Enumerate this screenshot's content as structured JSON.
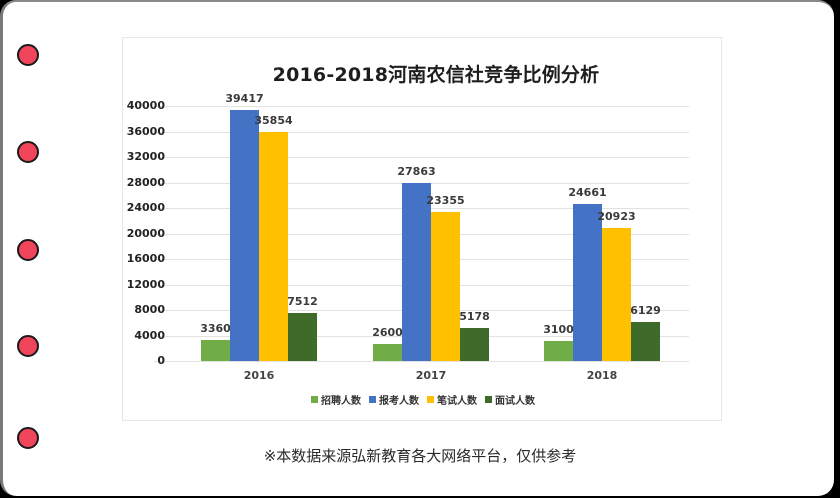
{
  "page": {
    "binder_rings": 5,
    "footnote": "※本数据来源弘新教育各大网络平台，仅供参考"
  },
  "chart_data": {
    "type": "bar",
    "title": "2016-2018河南农信社竞争比例分析",
    "xlabel": "",
    "ylabel": "",
    "categories": [
      "2016",
      "2017",
      "2018"
    ],
    "series": [
      {
        "name": "招聘人数",
        "color": "#70ad47",
        "values": [
          3360,
          2600,
          3100
        ]
      },
      {
        "name": "报考人数",
        "color": "#4472c4",
        "values": [
          39417,
          27863,
          24661
        ]
      },
      {
        "name": "笔试人数",
        "color": "#ffc000",
        "values": [
          35854,
          23355,
          20923
        ]
      },
      {
        "name": "面试人数",
        "color": "#3f6b2a",
        "values": [
          7512,
          5178,
          6129
        ]
      }
    ],
    "yticks": [
      "0",
      "4000",
      "8000",
      "12000",
      "16000",
      "20000",
      "24000",
      "28000",
      "32000",
      "36000",
      "40000"
    ],
    "ylim": [
      0,
      40000
    ],
    "grid": true,
    "legend_position": "bottom",
    "data_labels": true
  }
}
